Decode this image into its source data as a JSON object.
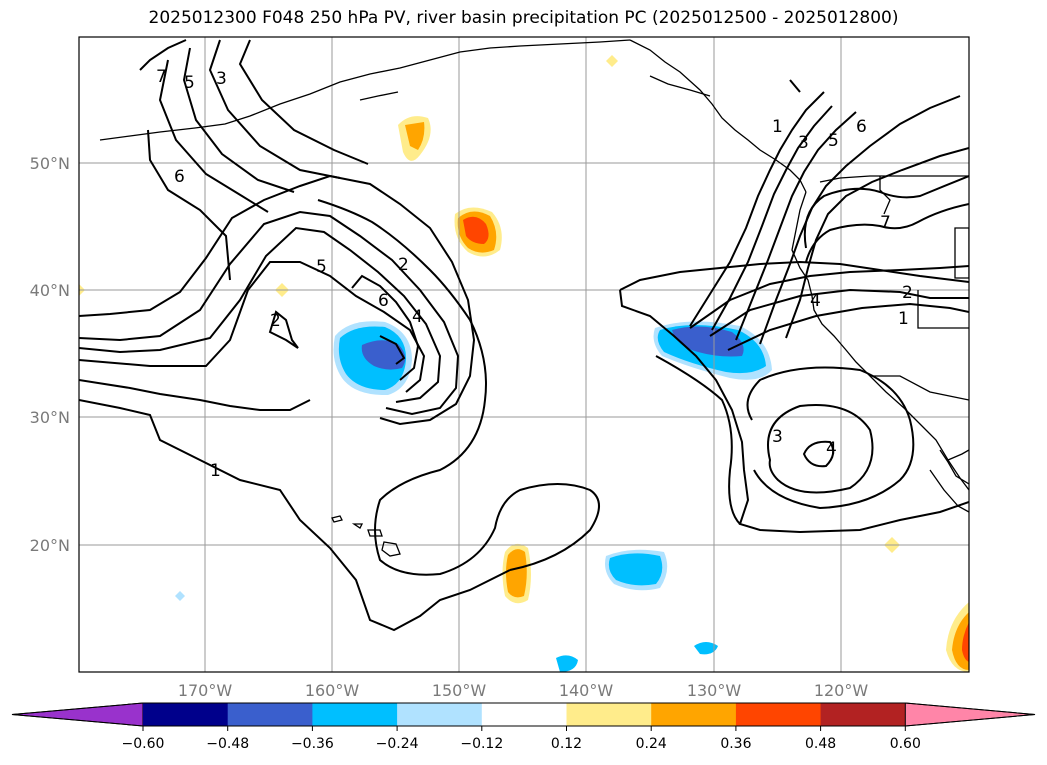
{
  "title": "2025012300 F048 250 hPa PV, river basin precipitation PC (2025012500 - 2025012800)",
  "lat_labels": [
    "50°N",
    "40°N",
    "30°N",
    "20°N"
  ],
  "lon_labels": [
    "170°W",
    "160°W",
    "150°W",
    "140°W",
    "130°W",
    "120°W"
  ],
  "pv_contour_labels": [
    "1",
    "2",
    "3",
    "4",
    "5",
    "6",
    "7"
  ],
  "colorbar": {
    "ticks": [
      "−0.60",
      "−0.48",
      "−0.36",
      "−0.24",
      "−0.12",
      "0.12",
      "0.24",
      "0.36",
      "0.48",
      "0.60"
    ],
    "colors": [
      "#9932cc",
      "#00008b",
      "#3a5fcd",
      "#00bfff",
      "#b0e2ff",
      "#ffffff",
      "#ffec8b",
      "#ffa500",
      "#ff4500",
      "#b22222",
      "#ff85a8"
    ]
  },
  "colors": {
    "contour": "#000000",
    "grid": "#9a9a9a",
    "axis_label": "#7a7a7a"
  }
}
